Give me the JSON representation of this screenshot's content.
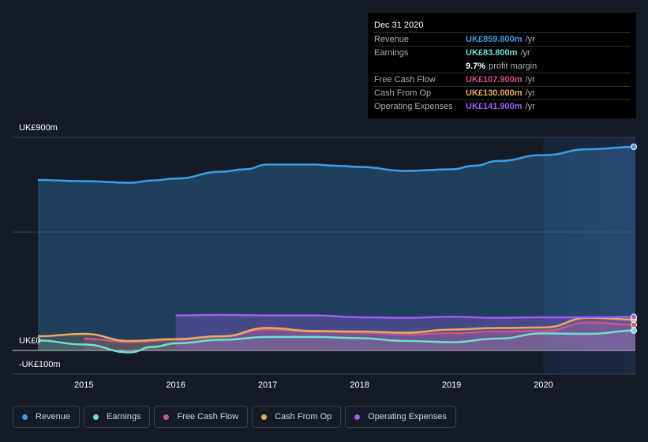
{
  "tooltip": {
    "date": "Dec 31 2020",
    "rows": [
      {
        "label": "Revenue",
        "value": "UK£859.800m",
        "unit": "/yr",
        "color": "#3b9ee9"
      },
      {
        "label": "Earnings",
        "value": "UK£83.800m",
        "unit": "/yr",
        "color": "#6ee0cf"
      },
      {
        "label": "Free Cash Flow",
        "value": "UK£107.900m",
        "unit": "/yr",
        "color": "#d2518a"
      },
      {
        "label": "Cash From Op",
        "value": "UK£130.000m",
        "unit": "/yr",
        "color": "#e6ac5e"
      },
      {
        "label": "Operating Expenses",
        "value": "UK£141.900m",
        "unit": "/yr",
        "color": "#a45cf0"
      }
    ],
    "margin": {
      "value": "9.7%",
      "label": "profit margin"
    }
  },
  "axis": {
    "y_top": "UK£900m",
    "y_zero": "UK£0",
    "y_bottom": "-UK£100m"
  },
  "legend": [
    {
      "label": "Revenue",
      "color": "#3b9ee9"
    },
    {
      "label": "Earnings",
      "color": "#6ee0cf"
    },
    {
      "label": "Free Cash Flow",
      "color": "#d2518a"
    },
    {
      "label": "Cash From Op",
      "color": "#e6ac5e"
    },
    {
      "label": "Operating Expenses",
      "color": "#a45cf0"
    }
  ],
  "chart_data": {
    "type": "line",
    "ylim": [
      -100,
      900
    ],
    "xlim": [
      2014.5,
      2021.0
    ],
    "x_ticks": [
      2015,
      2016,
      2017,
      2018,
      2019,
      2020
    ],
    "highlight_from": 2020.0,
    "series": [
      {
        "name": "Revenue",
        "color": "#3b9ee9",
        "x": [
          2014.5,
          2015.0,
          2015.5,
          2015.75,
          2016.0,
          2016.5,
          2016.75,
          2017.0,
          2017.5,
          2017.75,
          2018.0,
          2018.5,
          2019.0,
          2019.25,
          2019.5,
          2020.0,
          2020.5,
          2021.0
        ],
        "y": [
          720,
          715,
          708,
          718,
          726,
          755,
          765,
          785,
          785,
          780,
          775,
          758,
          765,
          780,
          800,
          825,
          850,
          860
        ]
      },
      {
        "name": "Earnings",
        "color": "#6ee0cf",
        "x": [
          2014.5,
          2015.0,
          2015.5,
          2015.75,
          2016.0,
          2016.5,
          2017.0,
          2017.5,
          2018.0,
          2018.5,
          2019.0,
          2019.5,
          2020.0,
          2020.5,
          2021.0
        ],
        "y": [
          42,
          25,
          -8,
          15,
          30,
          45,
          57,
          57,
          52,
          40,
          35,
          50,
          72,
          70,
          84
        ]
      },
      {
        "name": "Free Cash Flow",
        "color": "#d2518a",
        "x": [
          2015.0,
          2015.5,
          2016.0,
          2016.5,
          2017.0,
          2017.5,
          2018.0,
          2018.5,
          2019.0,
          2019.5,
          2020.0,
          2020.5,
          2021.0
        ],
        "y": [
          50,
          35,
          45,
          60,
          88,
          80,
          75,
          68,
          72,
          80,
          82,
          118,
          108
        ]
      },
      {
        "name": "Cash From Op",
        "color": "#e6ac5e",
        "x": [
          2014.5,
          2015.0,
          2015.5,
          2016.0,
          2016.5,
          2017.0,
          2017.5,
          2018.0,
          2018.5,
          2019.0,
          2019.5,
          2020.0,
          2020.5,
          2021.0
        ],
        "y": [
          60,
          70,
          40,
          48,
          60,
          95,
          82,
          80,
          75,
          88,
          95,
          97,
          138,
          130
        ]
      },
      {
        "name": "Operating Expenses",
        "color": "#a45cf0",
        "x": [
          2016.0,
          2016.5,
          2017.0,
          2017.5,
          2018.0,
          2018.5,
          2019.0,
          2019.5,
          2020.0,
          2020.5,
          2021.0
        ],
        "y": [
          148,
          150,
          148,
          148,
          140,
          138,
          142,
          138,
          140,
          140,
          142
        ]
      }
    ]
  }
}
